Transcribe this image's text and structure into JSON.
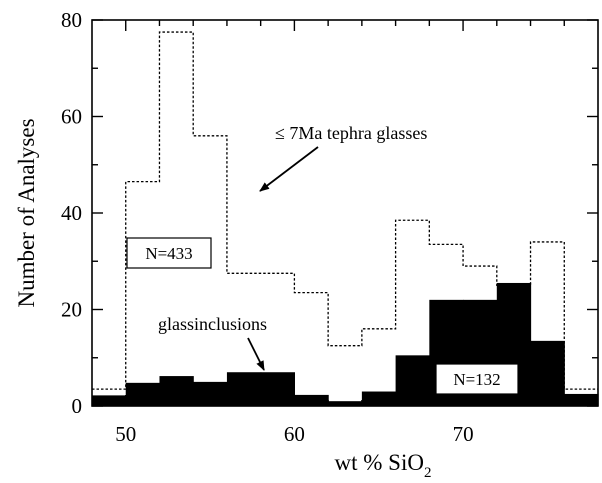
{
  "chart_data": {
    "type": "bar",
    "xlabel": "wt % SiO",
    "xlabel_subscript": "2",
    "ylabel": "Number of Analyses",
    "xlim": [
      48,
      78
    ],
    "ylim": [
      0,
      80
    ],
    "x_ticks": [
      "50",
      "60",
      "70"
    ],
    "y_ticks": [
      "0",
      "20",
      "40",
      "60",
      "80"
    ],
    "bin_width": 2,
    "bin_starts": [
      48,
      50,
      52,
      54,
      56,
      58,
      60,
      62,
      64,
      66,
      68,
      70,
      72,
      74,
      76
    ],
    "series": [
      {
        "style": "dotted-outline",
        "values": [
          3.5,
          46.5,
          77.5,
          56,
          27.5,
          27.5,
          23.5,
          12.5,
          16,
          38.5,
          33.5,
          29,
          25,
          34,
          3.5
        ]
      },
      {
        "style": "solid-fill",
        "values": [
          2.2,
          4.8,
          6.2,
          5,
          7,
          7,
          2.3,
          1,
          3,
          10.5,
          22,
          22,
          25.5,
          13.5,
          2.5
        ]
      }
    ],
    "annotations": [
      {
        "text": "≤ 7Ma tephra glasses",
        "points_to": [
          56,
          45
        ]
      },
      {
        "text": "glassinclusions",
        "points_to": [
          58.5,
          8
        ]
      }
    ],
    "boxed_labels": [
      "N=433",
      "N=132"
    ]
  }
}
